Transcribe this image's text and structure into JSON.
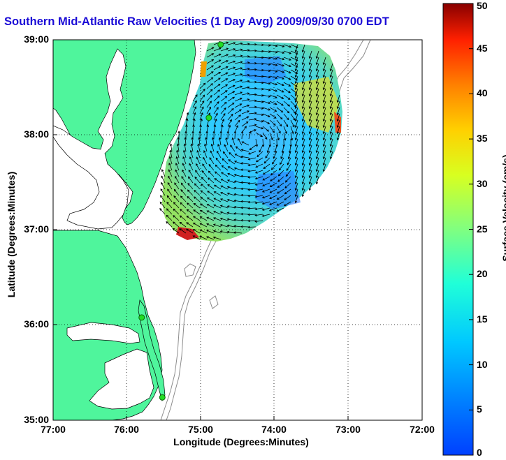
{
  "title": "Southern Mid-Atlantic Raw Velocities (1 Day Avg) 2009/09/30 0700 EDT",
  "axes": {
    "xlabel": "Longitude (Degrees:Minutes)",
    "ylabel": "Latitude (Degrees:Minutes)",
    "x_ticks": [
      "77:00",
      "76:00",
      "75:00",
      "74:00",
      "73:00",
      "72:00"
    ],
    "y_ticks": [
      "39:00",
      "38:00",
      "37:00",
      "36:00",
      "35:00"
    ],
    "xlim": [
      -77,
      -72
    ],
    "ylim": [
      35,
      39
    ],
    "grid": "dotted"
  },
  "colorbar": {
    "label": "Surface Velocity (cm/s)",
    "ticks": [
      "50",
      "45",
      "40",
      "35",
      "30",
      "25",
      "20",
      "15",
      "10",
      "5",
      "0"
    ],
    "range": [
      0,
      50
    ],
    "colormap": "jet"
  },
  "colors": {
    "land": "#4ff59c",
    "water": "#ffffff",
    "title": "#1a0ad6",
    "bathymetry": "#8c8c8c",
    "station": "#22dd22"
  },
  "stations": [
    {
      "lon": -74.88,
      "lat": 38.97
    },
    {
      "lon": -75.14,
      "lat": 38.22
    },
    {
      "lon": -75.75,
      "lat": 36.17
    },
    {
      "lon": -75.53,
      "lat": 35.25
    }
  ],
  "marker_positions": [
    {
      "lon": -74.73,
      "lat": 38.95
    },
    {
      "lon": -74.89,
      "lat": 38.18
    },
    {
      "lon": -75.8,
      "lat": 36.08
    },
    {
      "lon": -75.52,
      "lat": 35.24
    }
  ]
}
